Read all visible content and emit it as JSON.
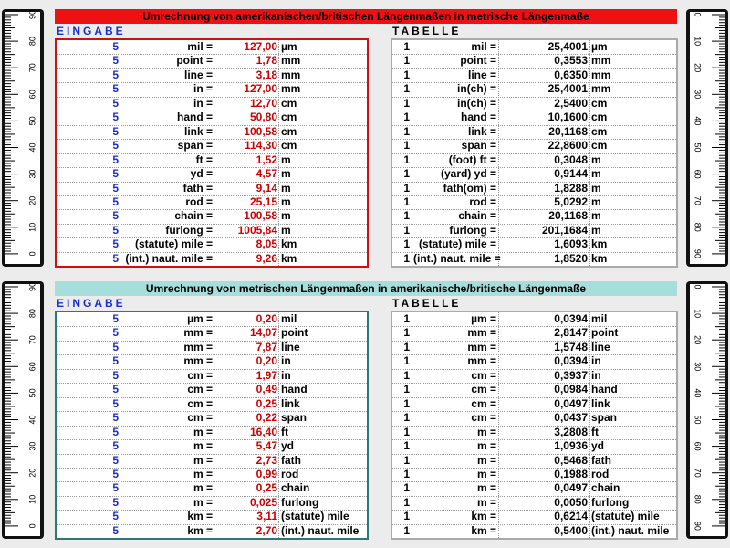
{
  "sections": [
    {
      "title": "Umrechnung von amerikanischen/britischen Längenmaßen in metrische Längenmaße",
      "input_label": "EINGABE",
      "table_label": "TABELLE",
      "input_rows": [
        [
          "5",
          "mil =",
          "127,00",
          "µm"
        ],
        [
          "5",
          "point =",
          "1,78",
          "mm"
        ],
        [
          "5",
          "line =",
          "3,18",
          "mm"
        ],
        [
          "5",
          "in =",
          "127,00",
          "mm"
        ],
        [
          "5",
          "in =",
          "12,70",
          "cm"
        ],
        [
          "5",
          "hand =",
          "50,80",
          "cm"
        ],
        [
          "5",
          "link =",
          "100,58",
          "cm"
        ],
        [
          "5",
          "span =",
          "114,30",
          "cm"
        ],
        [
          "5",
          "ft =",
          "1,52",
          "m"
        ],
        [
          "5",
          "yd =",
          "4,57",
          "m"
        ],
        [
          "5",
          "fath =",
          "9,14",
          "m"
        ],
        [
          "5",
          "rod =",
          "25,15",
          "m"
        ],
        [
          "5",
          "chain =",
          "100,58",
          "m"
        ],
        [
          "5",
          "furlong =",
          "1005,84",
          "m"
        ],
        [
          "5",
          "(statute) mile =",
          "8,05",
          "km"
        ],
        [
          "5",
          "(int.) naut. mile =",
          "9,26",
          "km"
        ]
      ],
      "table_rows": [
        [
          "1",
          "mil =",
          "25,4001",
          "µm"
        ],
        [
          "1",
          "point =",
          "0,3553",
          "mm"
        ],
        [
          "1",
          "line =",
          "0,6350",
          "mm"
        ],
        [
          "1",
          "in(ch) =",
          "25,4001",
          "mm"
        ],
        [
          "1",
          "in(ch) =",
          "2,5400",
          "cm"
        ],
        [
          "1",
          "hand =",
          "10,1600",
          "cm"
        ],
        [
          "1",
          "link =",
          "20,1168",
          "cm"
        ],
        [
          "1",
          "span =",
          "22,8600",
          "cm"
        ],
        [
          "1",
          "(foot) ft =",
          "0,3048",
          "m"
        ],
        [
          "1",
          "(yard) yd =",
          "0,9144",
          "m"
        ],
        [
          "1",
          "fath(om) =",
          "1,8288",
          "m"
        ],
        [
          "1",
          "rod =",
          "5,0292",
          "m"
        ],
        [
          "1",
          "chain =",
          "20,1168",
          "m"
        ],
        [
          "1",
          "furlong =",
          "201,1684",
          "m"
        ],
        [
          "1",
          "(statute) mile =",
          "1,6093",
          "km"
        ],
        [
          "1",
          "(int.) naut. mile =",
          "1,8520",
          "km"
        ]
      ]
    },
    {
      "title": "Umrechnung von metrischen Längenmaßen in amerikanische/britische Längenmaße",
      "input_label": "EINGABE",
      "table_label": "TABELLE",
      "input_rows": [
        [
          "5",
          "µm =",
          "0,20",
          "mil"
        ],
        [
          "5",
          "mm =",
          "14,07",
          "point"
        ],
        [
          "5",
          "mm =",
          "7,87",
          "line"
        ],
        [
          "5",
          "mm =",
          "0,20",
          "in"
        ],
        [
          "5",
          "cm =",
          "1,97",
          "in"
        ],
        [
          "5",
          "cm =",
          "0,49",
          "hand"
        ],
        [
          "5",
          "cm =",
          "0,25",
          "link"
        ],
        [
          "5",
          "cm =",
          "0,22",
          "span"
        ],
        [
          "5",
          "m =",
          "16,40",
          "ft"
        ],
        [
          "5",
          "m =",
          "5,47",
          "yd"
        ],
        [
          "5",
          "m =",
          "2,73",
          "fath"
        ],
        [
          "5",
          "m =",
          "0,99",
          "rod"
        ],
        [
          "5",
          "m =",
          "0,25",
          "chain"
        ],
        [
          "5",
          "m =",
          "0,025",
          "furlong"
        ],
        [
          "5",
          "km =",
          "3,11",
          "(statute) mile"
        ],
        [
          "5",
          "km =",
          "2,70",
          "(int.) naut. mile"
        ]
      ],
      "table_rows": [
        [
          "1",
          "µm =",
          "0,0394",
          "mil"
        ],
        [
          "1",
          "mm =",
          "2,8147",
          "point"
        ],
        [
          "1",
          "mm =",
          "1,5748",
          "line"
        ],
        [
          "1",
          "mm =",
          "0,0394",
          "in"
        ],
        [
          "1",
          "cm =",
          "0,3937",
          "in"
        ],
        [
          "1",
          "cm =",
          "0,0984",
          "hand"
        ],
        [
          "1",
          "cm =",
          "0,0497",
          "link"
        ],
        [
          "1",
          "cm =",
          "0,0437",
          "span"
        ],
        [
          "1",
          "m =",
          "3,2808",
          "ft"
        ],
        [
          "1",
          "m =",
          "1,0936",
          "yd"
        ],
        [
          "1",
          "m =",
          "0,5468",
          "fath"
        ],
        [
          "1",
          "m =",
          "0,1988",
          "rod"
        ],
        [
          "1",
          "m =",
          "0,0497",
          "chain"
        ],
        [
          "1",
          "m =",
          "0,0050",
          "furlong"
        ],
        [
          "1",
          "km =",
          "0,6214",
          "(statute) mile"
        ],
        [
          "1",
          "km =",
          "0,5400",
          "(int.) naut. mile"
        ]
      ]
    }
  ],
  "rulers": [
    {
      "labels": [
        "90",
        "80",
        "70",
        "60",
        "50",
        "40",
        "30",
        "20",
        "10",
        "0"
      ]
    },
    {
      "labels": [
        "90",
        "80",
        "70",
        "60",
        "50",
        "40",
        "30",
        "20",
        "10",
        "0"
      ]
    },
    {
      "labels": [
        "0",
        "10",
        "20",
        "30",
        "40",
        "50",
        "60",
        "70",
        "80",
        "90"
      ]
    },
    {
      "labels": [
        "0",
        "10",
        "20",
        "30",
        "40",
        "50",
        "60",
        "70",
        "80",
        "90"
      ]
    }
  ]
}
